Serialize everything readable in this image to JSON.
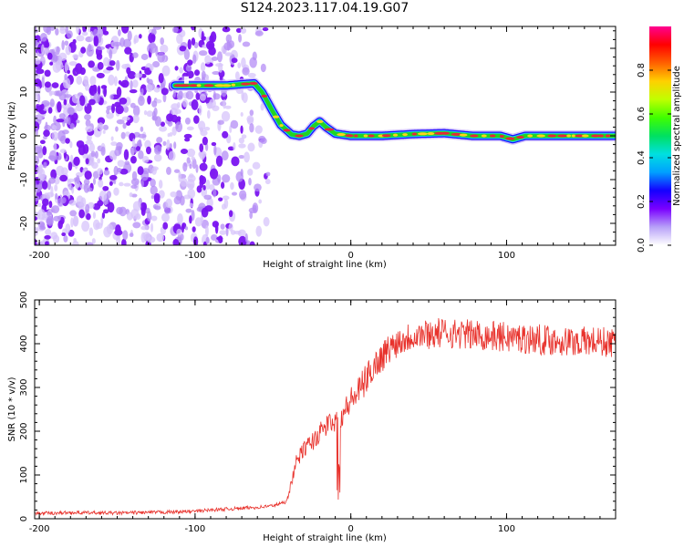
{
  "title": "S124.2023.117.04.19.G07",
  "colors": {
    "snr_line": "#e8322c",
    "ridge_core": "#e8263a",
    "ridge_mid": "#22d322",
    "ridge_edge": "#1a10ff",
    "noise": "#7a14f0",
    "axis": "#000000"
  },
  "chart_data": [
    {
      "type": "heatmap",
      "xlabel": "Height of straight line (km)",
      "ylabel": "Frequency (Hz)",
      "xlim": [
        -203,
        170
      ],
      "ylim": [
        -25,
        25
      ],
      "xticks": [
        -200,
        -100,
        0,
        100
      ],
      "yticks": [
        -20,
        -10,
        0,
        10,
        20
      ],
      "ridge": {
        "x": [
          -113,
          -100,
          -80,
          -70,
          -62,
          -57,
          -50,
          -45,
          -38,
          -33,
          -28,
          -24,
          -20,
          -16,
          -10,
          0,
          20,
          40,
          60,
          78,
          96,
          104,
          112,
          130,
          150,
          170
        ],
        "y": [
          11.5,
          11.5,
          11.5,
          11.8,
          12,
          10,
          5.5,
          2.5,
          0.3,
          0,
          0.5,
          2.2,
          3.3,
          2,
          0.5,
          0,
          0,
          0.4,
          0.6,
          0,
          0,
          -0.8,
          0,
          0,
          0,
          0
        ]
      },
      "colorbar": {
        "label": "Normalized spectral amplitude",
        "range": [
          0,
          1
        ],
        "ticks": [
          "0.0",
          "0.2",
          "0.4",
          "0.6",
          "0.8"
        ],
        "colormap": [
          "#ffffff",
          "#b7a0f8",
          "#7a00ff",
          "#1400ff",
          "#00a0ff",
          "#00e0e0",
          "#00e060",
          "#40ff00",
          "#c0ff00",
          "#ffd000",
          "#ff6000",
          "#ff0000",
          "#ff0090"
        ]
      }
    },
    {
      "type": "line",
      "xlabel": "Height of straight line (km)",
      "ylabel": "SNR (10 * v/v)",
      "xlim": [
        -203,
        170
      ],
      "ylim": [
        0,
        500
      ],
      "xticks": [
        -200,
        -100,
        0,
        100
      ],
      "yticks": [
        0,
        100,
        200,
        300,
        400,
        500
      ],
      "series": [
        {
          "x": [
            -203,
            -180,
            -150,
            -120,
            -100,
            -90,
            -80,
            -70,
            -60,
            -50,
            -42,
            -40,
            -35,
            -30,
            -25,
            -20,
            -15,
            -10,
            -5,
            0,
            5,
            10,
            15,
            20,
            25,
            30,
            40,
            60,
            80,
            100,
            120,
            140,
            160,
            170
          ],
          "y": [
            12,
            14,
            13,
            15,
            17,
            20,
            22,
            24,
            26,
            30,
            38,
            55,
            130,
            160,
            175,
            195,
            215,
            225,
            240,
            270,
            290,
            320,
            350,
            370,
            390,
            405,
            420,
            425,
            420,
            415,
            410,
            405,
            405,
            400
          ]
        }
      ]
    }
  ]
}
